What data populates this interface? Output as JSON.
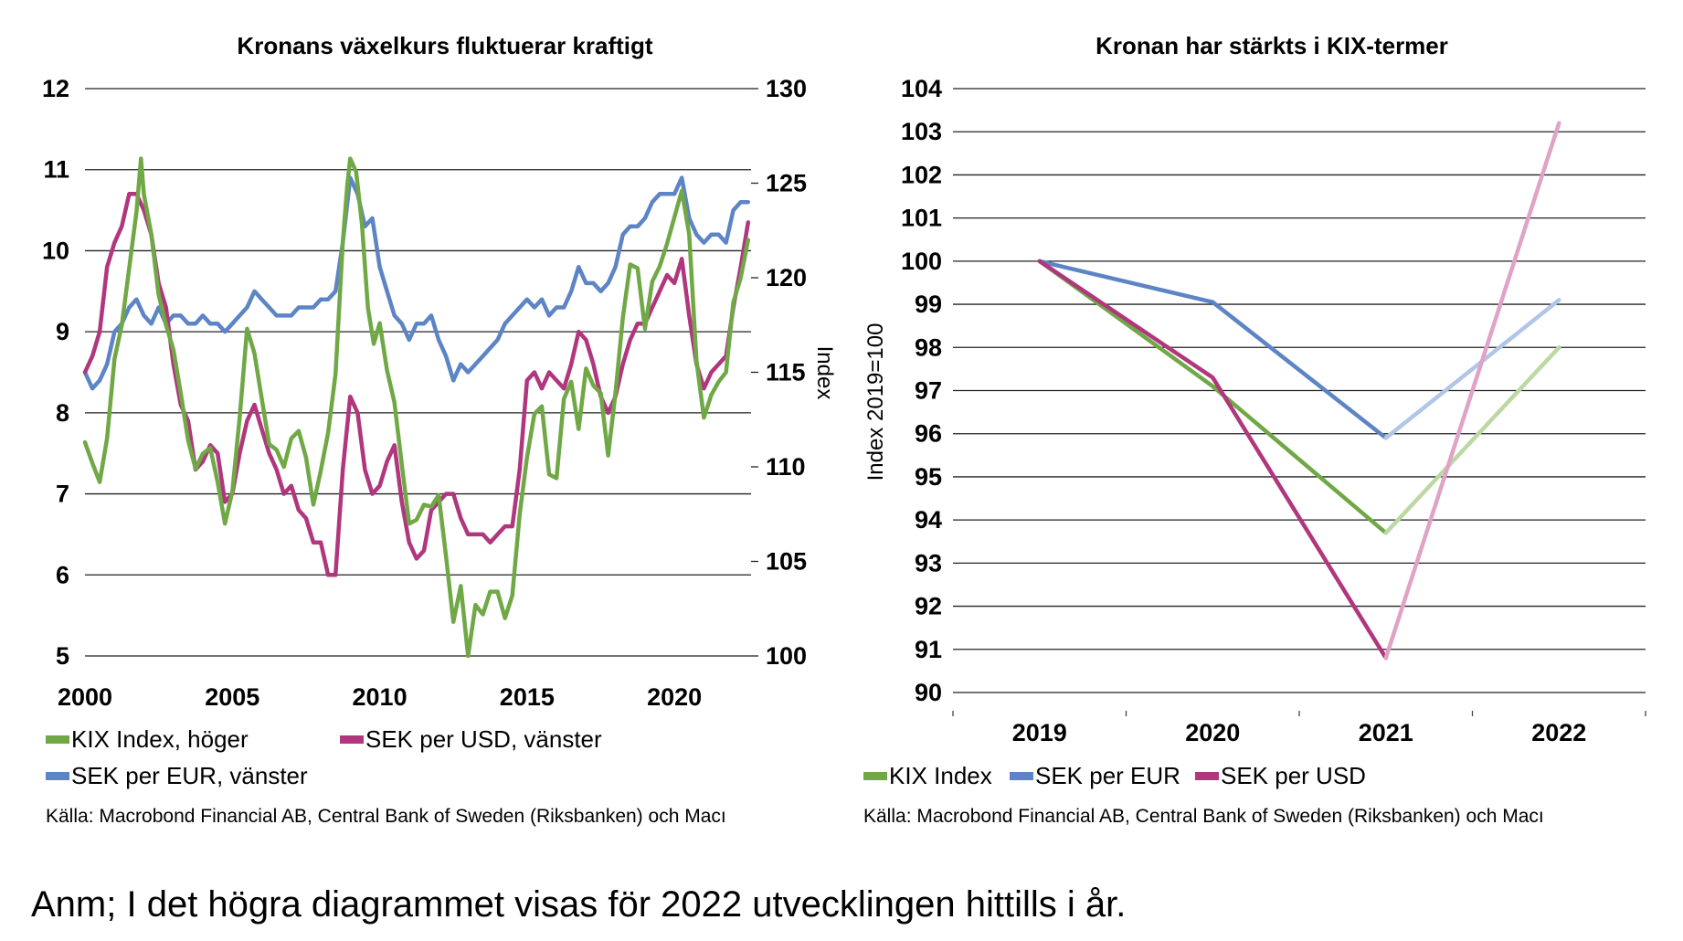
{
  "note": "Anm; I det högra diagrammet visas för 2022 utvecklingen hittills i år.",
  "chart_data": [
    {
      "type": "line",
      "title": "Kronans växelkurs fluktuerar kraftigt",
      "xlabel": "",
      "ylabel_left": "",
      "ylabel_right": "Index",
      "xlim": [
        2000,
        2022.6
      ],
      "ylim_left": [
        5,
        12
      ],
      "ylim_right": [
        100,
        130
      ],
      "xticks": [
        2000,
        2005,
        2010,
        2015,
        2020
      ],
      "yticks_left": [
        5,
        6,
        7,
        8,
        9,
        10,
        11,
        12
      ],
      "yticks_right": [
        100,
        105,
        110,
        115,
        120,
        125,
        130
      ],
      "grid": true,
      "legend_position": "bottom",
      "source": "Källa: Macrobond Financial AB, Central Bank of Sweden (Riksbanken) och Macı",
      "series": [
        {
          "name": "KIX Index, höger",
          "axis": "right",
          "color": "#70a846",
          "x": [
            2000.0,
            2000.25,
            2000.5,
            2000.75,
            2001.0,
            2001.25,
            2001.5,
            2001.75,
            2001.9,
            2002.0,
            2002.25,
            2002.5,
            2002.75,
            2003.0,
            2003.25,
            2003.5,
            2003.75,
            2004.0,
            2004.25,
            2004.5,
            2004.75,
            2005.0,
            2005.25,
            2005.5,
            2005.75,
            2006.0,
            2006.25,
            2006.5,
            2006.75,
            2007.0,
            2007.25,
            2007.5,
            2007.75,
            2008.0,
            2008.25,
            2008.5,
            2008.75,
            2008.9,
            2009.0,
            2009.2,
            2009.4,
            2009.6,
            2009.8,
            2010.0,
            2010.25,
            2010.5,
            2010.75,
            2011.0,
            2011.25,
            2011.5,
            2011.75,
            2012.0,
            2012.25,
            2012.5,
            2012.75,
            2013.0,
            2013.25,
            2013.5,
            2013.75,
            2014.0,
            2014.25,
            2014.5,
            2014.75,
            2015.0,
            2015.25,
            2015.5,
            2015.75,
            2016.0,
            2016.25,
            2016.5,
            2016.75,
            2017.0,
            2017.25,
            2017.5,
            2017.75,
            2018.0,
            2018.25,
            2018.5,
            2018.75,
            2019.0,
            2019.25,
            2019.5,
            2019.75,
            2020.0,
            2020.25,
            2020.5,
            2020.75,
            2021.0,
            2021.25,
            2021.5,
            2021.75,
            2022.0,
            2022.25,
            2022.5
          ],
          "values": [
            111.3,
            110.2,
            109.2,
            111.5,
            115.7,
            117.5,
            120.5,
            123.5,
            126.3,
            124.4,
            122.3,
            119.1,
            117.5,
            116.2,
            113.9,
            111.4,
            109.9,
            110.7,
            111.0,
            109.2,
            107.0,
            108.7,
            112.6,
            117.3,
            116.0,
            113.6,
            111.2,
            110.9,
            110.0,
            111.5,
            111.9,
            110.5,
            108.0,
            109.8,
            111.8,
            114.9,
            121.9,
            124.9,
            126.3,
            125.6,
            122.8,
            118.4,
            116.5,
            117.6,
            115.1,
            113.4,
            110.1,
            107.0,
            107.2,
            108.0,
            107.9,
            108.5,
            105.3,
            101.8,
            103.7,
            100.0,
            102.7,
            102.2,
            103.4,
            103.4,
            102.0,
            103.2,
            107.5,
            110.5,
            112.8,
            113.2,
            109.6,
            109.4,
            113.6,
            114.5,
            112.0,
            115.2,
            114.3,
            113.9,
            110.6,
            113.9,
            117.9,
            120.7,
            120.5,
            117.3,
            119.8,
            120.6,
            121.8,
            123.2,
            124.6,
            122.3,
            115.6,
            112.6,
            113.8,
            114.5,
            115.0,
            118.7,
            120.0,
            122.0
          ]
        },
        {
          "name": "SEK per USD, vänster",
          "axis": "left",
          "color": "#b0367e",
          "x": [
            2000.0,
            2000.25,
            2000.5,
            2000.75,
            2001.0,
            2001.25,
            2001.5,
            2001.75,
            2002.0,
            2002.25,
            2002.5,
            2002.75,
            2003.0,
            2003.25,
            2003.5,
            2003.75,
            2004.0,
            2004.25,
            2004.5,
            2004.75,
            2005.0,
            2005.25,
            2005.5,
            2005.75,
            2006.0,
            2006.25,
            2006.5,
            2006.75,
            2007.0,
            2007.25,
            2007.5,
            2007.75,
            2008.0,
            2008.25,
            2008.5,
            2008.75,
            2009.0,
            2009.25,
            2009.5,
            2009.75,
            2010.0,
            2010.25,
            2010.5,
            2010.75,
            2011.0,
            2011.25,
            2011.5,
            2011.75,
            2012.0,
            2012.25,
            2012.5,
            2012.75,
            2013.0,
            2013.25,
            2013.5,
            2013.75,
            2014.0,
            2014.25,
            2014.5,
            2014.75,
            2015.0,
            2015.25,
            2015.5,
            2015.75,
            2016.0,
            2016.25,
            2016.5,
            2016.75,
            2017.0,
            2017.25,
            2017.5,
            2017.75,
            2018.0,
            2018.25,
            2018.5,
            2018.75,
            2019.0,
            2019.25,
            2019.5,
            2019.75,
            2020.0,
            2020.25,
            2020.5,
            2020.75,
            2021.0,
            2021.25,
            2021.5,
            2021.75,
            2022.0,
            2022.25,
            2022.5
          ],
          "values": [
            8.5,
            8.7,
            9.0,
            9.8,
            10.1,
            10.3,
            10.7,
            10.7,
            10.5,
            10.2,
            9.6,
            9.3,
            8.6,
            8.1,
            7.9,
            7.3,
            7.4,
            7.6,
            7.5,
            6.9,
            7.0,
            7.5,
            7.9,
            8.1,
            7.8,
            7.5,
            7.3,
            7.0,
            7.1,
            6.8,
            6.7,
            6.4,
            6.4,
            6.0,
            6.0,
            7.3,
            8.2,
            8.0,
            7.3,
            7.0,
            7.1,
            7.4,
            7.6,
            6.9,
            6.4,
            6.2,
            6.3,
            6.8,
            6.9,
            7.0,
            7.0,
            6.7,
            6.5,
            6.5,
            6.5,
            6.4,
            6.5,
            6.6,
            6.6,
            7.3,
            8.4,
            8.5,
            8.3,
            8.5,
            8.4,
            8.3,
            8.6,
            9.0,
            8.9,
            8.6,
            8.2,
            8.0,
            8.2,
            8.6,
            8.9,
            9.1,
            9.1,
            9.3,
            9.5,
            9.7,
            9.6,
            9.9,
            9.2,
            8.6,
            8.3,
            8.5,
            8.6,
            8.7,
            9.3,
            9.8,
            10.35
          ]
        },
        {
          "name": "SEK per EUR, vänster",
          "axis": "left",
          "color": "#5d84c4",
          "x": [
            2000.0,
            2000.25,
            2000.5,
            2000.75,
            2001.0,
            2001.25,
            2001.5,
            2001.75,
            2002.0,
            2002.25,
            2002.5,
            2002.75,
            2003.0,
            2003.25,
            2003.5,
            2003.75,
            2004.0,
            2004.25,
            2004.5,
            2004.75,
            2005.0,
            2005.25,
            2005.5,
            2005.75,
            2006.0,
            2006.25,
            2006.5,
            2006.75,
            2007.0,
            2007.25,
            2007.5,
            2007.75,
            2008.0,
            2008.25,
            2008.5,
            2008.75,
            2009.0,
            2009.25,
            2009.5,
            2009.75,
            2010.0,
            2010.25,
            2010.5,
            2010.75,
            2011.0,
            2011.25,
            2011.5,
            2011.75,
            2012.0,
            2012.25,
            2012.5,
            2012.75,
            2013.0,
            2013.25,
            2013.5,
            2013.75,
            2014.0,
            2014.25,
            2014.5,
            2014.75,
            2015.0,
            2015.25,
            2015.5,
            2015.75,
            2016.0,
            2016.25,
            2016.5,
            2016.75,
            2017.0,
            2017.25,
            2017.5,
            2017.75,
            2018.0,
            2018.25,
            2018.5,
            2018.75,
            2019.0,
            2019.25,
            2019.5,
            2019.75,
            2020.0,
            2020.25,
            2020.5,
            2020.75,
            2021.0,
            2021.25,
            2021.5,
            2021.75,
            2022.0,
            2022.25,
            2022.5
          ],
          "values": [
            8.5,
            8.3,
            8.4,
            8.6,
            9.0,
            9.1,
            9.3,
            9.4,
            9.2,
            9.1,
            9.3,
            9.1,
            9.2,
            9.2,
            9.1,
            9.1,
            9.2,
            9.1,
            9.1,
            9.0,
            9.1,
            9.2,
            9.3,
            9.5,
            9.4,
            9.3,
            9.2,
            9.2,
            9.2,
            9.3,
            9.3,
            9.3,
            9.4,
            9.4,
            9.5,
            10.1,
            10.9,
            10.7,
            10.3,
            10.4,
            9.8,
            9.5,
            9.2,
            9.1,
            8.9,
            9.1,
            9.1,
            9.2,
            8.9,
            8.7,
            8.4,
            8.6,
            8.5,
            8.6,
            8.7,
            8.8,
            8.9,
            9.1,
            9.2,
            9.3,
            9.4,
            9.3,
            9.4,
            9.2,
            9.3,
            9.3,
            9.5,
            9.8,
            9.6,
            9.6,
            9.5,
            9.6,
            9.8,
            10.2,
            10.3,
            10.3,
            10.4,
            10.6,
            10.7,
            10.7,
            10.7,
            10.9,
            10.4,
            10.2,
            10.1,
            10.2,
            10.2,
            10.1,
            10.5,
            10.6,
            10.6
          ]
        }
      ]
    },
    {
      "type": "line",
      "title": "Kronan har stärkts i KIX-termer",
      "xlabel": "",
      "ylabel": "Index 2019=100",
      "ylim": [
        90,
        104
      ],
      "yticks": [
        90,
        91,
        92,
        93,
        94,
        95,
        96,
        97,
        98,
        99,
        100,
        101,
        102,
        103,
        104
      ],
      "categories": [
        "2019",
        "2020",
        "2021",
        "2022"
      ],
      "grid": true,
      "legend_position": "bottom",
      "source": "Källa: Macrobond Financial AB, Central Bank of Sweden (Riksbanken) och Macı",
      "series": [
        {
          "name": "KIX Index",
          "color": "#70a846",
          "light_color": "#bcd8a4",
          "values": [
            100,
            97.1,
            93.7,
            98.0
          ]
        },
        {
          "name": "SEK per EUR",
          "color": "#5d84c4",
          "light_color": "#b1c6e6",
          "values": [
            100,
            99.05,
            95.9,
            99.1
          ]
        },
        {
          "name": "SEK per USD",
          "color": "#b0367e",
          "light_color": "#dea3c6",
          "values": [
            100,
            97.3,
            90.8,
            103.2
          ]
        }
      ]
    }
  ]
}
